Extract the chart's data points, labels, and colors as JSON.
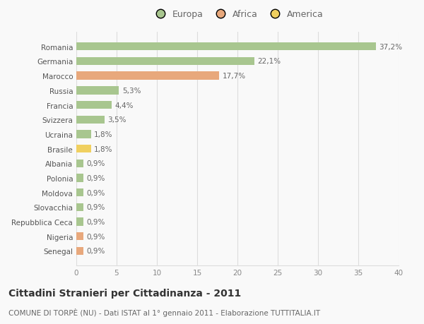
{
  "categories": [
    "Senegal",
    "Nigeria",
    "Repubblica Ceca",
    "Slovacchia",
    "Moldova",
    "Polonia",
    "Albania",
    "Brasile",
    "Ucraina",
    "Svizzera",
    "Francia",
    "Russia",
    "Marocco",
    "Germania",
    "Romania"
  ],
  "values": [
    0.9,
    0.9,
    0.9,
    0.9,
    0.9,
    0.9,
    0.9,
    1.8,
    1.8,
    3.5,
    4.4,
    5.3,
    17.7,
    22.1,
    37.2
  ],
  "labels": [
    "0,9%",
    "0,9%",
    "0,9%",
    "0,9%",
    "0,9%",
    "0,9%",
    "0,9%",
    "1,8%",
    "1,8%",
    "3,5%",
    "4,4%",
    "5,3%",
    "17,7%",
    "22,1%",
    "37,2%"
  ],
  "colors": [
    "#e8a87c",
    "#e8a87c",
    "#a8c68f",
    "#a8c68f",
    "#a8c68f",
    "#a8c68f",
    "#a8c68f",
    "#f0d060",
    "#a8c68f",
    "#a8c68f",
    "#a8c68f",
    "#a8c68f",
    "#e8a87c",
    "#a8c68f",
    "#a8c68f"
  ],
  "legend": [
    {
      "label": "Europa",
      "color": "#a8c68f"
    },
    {
      "label": "Africa",
      "color": "#e8a87c"
    },
    {
      "label": "America",
      "color": "#f0d060"
    }
  ],
  "xlim": [
    0,
    40
  ],
  "xticks": [
    0,
    5,
    10,
    15,
    20,
    25,
    30,
    35,
    40
  ],
  "title": "Cittadini Stranieri per Cittadinanza - 2011",
  "subtitle": "COMUNE DI TORPÈ (NU) - Dati ISTAT al 1° gennaio 2011 - Elaborazione TUTTITALIA.IT",
  "background_color": "#f9f9f9",
  "grid_color": "#dddddd",
  "bar_height": 0.55,
  "label_fontsize": 7.5,
  "tick_fontsize": 7.5,
  "title_fontsize": 10,
  "subtitle_fontsize": 7.5
}
